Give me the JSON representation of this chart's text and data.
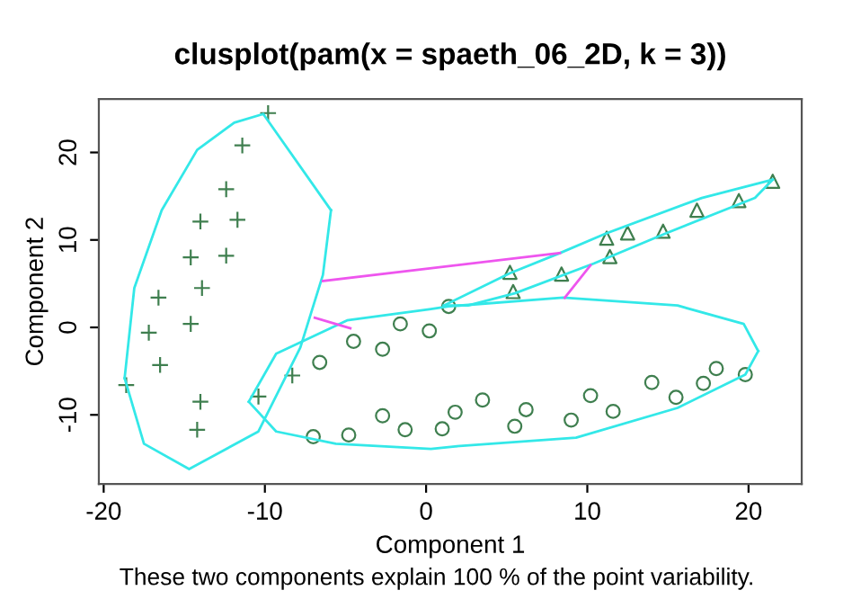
{
  "chart_data": {
    "type": "scatter",
    "title": "clusplot(pam(x = spaeth_06_2D, k = 3))",
    "xlabel": "Component 1",
    "ylabel": "Component 2",
    "annotations": [
      "These two components explain 100 % of the point variability."
    ],
    "xlim": [
      -20.3,
      23.3
    ],
    "ylim": [
      -17.9,
      26.1
    ],
    "xticks": [
      -20,
      -10,
      0,
      10,
      20
    ],
    "yticks": [
      -10,
      0,
      10,
      20
    ],
    "grid": false,
    "legend": false,
    "series": [
      {
        "type": "line",
        "color": "#33e8e8",
        "marker": "none",
        "x": [
          -18.7,
          -18.1,
          -16.4,
          -14.2,
          -11.9,
          -10.1,
          -5.9
        ],
        "values": [
          -5.8,
          4.5,
          13.4,
          20.3,
          23.4,
          24.4,
          13.4
        ]
      },
      {
        "type": "line",
        "color": "#33e8e8",
        "marker": "none",
        "x": [
          -18.7,
          -17.5,
          -14.7,
          -10.4,
          -7.8,
          -6.4,
          -5.9
        ],
        "values": [
          -5.8,
          -13.3,
          -16.2,
          -11.9,
          -2.3,
          6.0,
          13.4
        ]
      },
      {
        "type": "line",
        "color": "#33e8e8",
        "marker": "none",
        "x": [
          -11.0,
          -9.3,
          -4.9,
          0.3,
          1.4,
          8.5,
          15.6,
          19.7,
          20.6
        ],
        "values": [
          -8.5,
          -3.0,
          0.8,
          2.1,
          2.4,
          3.4,
          2.5,
          0.4,
          -2.7
        ]
      },
      {
        "type": "line",
        "color": "#33e8e8",
        "marker": "none",
        "x": [
          -11.0,
          -9.3,
          -5.6,
          0.3,
          1.8,
          9.3,
          15.6,
          19.8,
          20.6
        ],
        "values": [
          -8.5,
          -11.9,
          -13.3,
          -13.9,
          -13.6,
          -12.6,
          -9.2,
          -5.4,
          -2.7
        ]
      },
      {
        "type": "line",
        "color": "#33e8e8",
        "marker": "none",
        "x": [
          1.1,
          5.2,
          8.3,
          11.1,
          17.1,
          21.5
        ],
        "values": [
          2.5,
          6.2,
          8.5,
          10.7,
          14.8,
          16.9
        ]
      },
      {
        "type": "line",
        "color": "#33e8e8",
        "marker": "none",
        "x": [
          1.1,
          2.6,
          5.5,
          10.4,
          14.8,
          20.4,
          21.5
        ],
        "values": [
          2.5,
          2.5,
          3.9,
          7.3,
          10.7,
          14.8,
          16.9
        ]
      },
      {
        "type": "line",
        "color": "#ee55ee",
        "marker": "none",
        "x": [
          -6.4,
          8.3
        ],
        "values": [
          5.3,
          8.5
        ]
      },
      {
        "type": "line",
        "color": "#ee55ee",
        "marker": "none",
        "x": [
          -6.9,
          -4.7
        ],
        "values": [
          1.1,
          -0.1
        ]
      },
      {
        "type": "line",
        "color": "#ee55ee",
        "marker": "none",
        "x": [
          10.2,
          8.6
        ],
        "values": [
          7.1,
          3.4
        ]
      },
      {
        "color": "#3f7f4f",
        "marker": "cross",
        "x": [
          -9.8,
          -11.4,
          -12.4,
          -14.0,
          -11.7,
          -14.6,
          -12.4,
          -13.9,
          -16.6,
          -17.2,
          -14.6,
          -16.5,
          -18.6,
          -14.0,
          -14.2,
          -10.4,
          -8.3
        ],
        "values": [
          24.5,
          20.8,
          15.8,
          12.1,
          12.3,
          8.0,
          8.2,
          4.5,
          3.4,
          -0.6,
          0.4,
          -4.3,
          -6.6,
          -8.5,
          -11.7,
          -7.9,
          -5.5
        ]
      },
      {
        "color": "#3f7f4f",
        "marker": "circle",
        "x": [
          -6.6,
          -4.5,
          -2.7,
          -1.6,
          0.2,
          -7.0,
          -4.8,
          -2.7,
          -1.3,
          1.4,
          1.0,
          1.8,
          3.5,
          5.5,
          6.2,
          9.0,
          10.2,
          11.6,
          14.0,
          15.5,
          17.2,
          18.0,
          19.8
        ],
        "values": [
          -4.0,
          -1.6,
          -2.5,
          0.4,
          -0.4,
          -12.5,
          -12.3,
          -10.1,
          -11.7,
          2.4,
          -11.6,
          -9.7,
          -8.3,
          -11.3,
          -9.4,
          -10.6,
          -7.8,
          -9.6,
          -6.3,
          -8.0,
          -6.4,
          -4.7,
          -5.4
        ]
      },
      {
        "color": "#3f7f4f",
        "marker": "triangle",
        "x": [
          5.2,
          5.4,
          8.4,
          11.2,
          12.5,
          11.4,
          14.7,
          16.8,
          19.4,
          21.5
        ],
        "values": [
          6.3,
          4.1,
          6.1,
          10.2,
          10.8,
          8.1,
          11.0,
          13.4,
          14.5,
          16.7
        ]
      }
    ]
  }
}
